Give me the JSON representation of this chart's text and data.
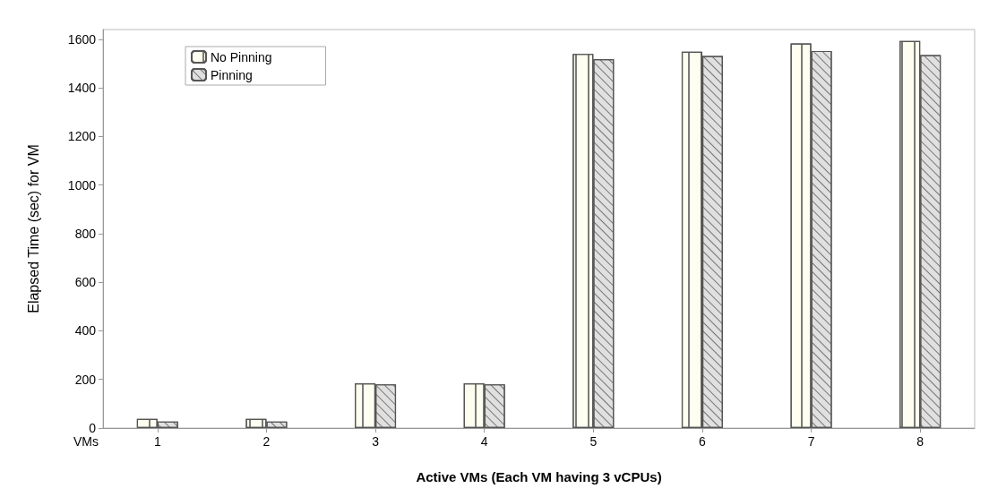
{
  "chart_data": {
    "type": "bar",
    "xlabel": "Active VMs (Each VM having 3 vCPUs)",
    "ylabel": "Elapsed Time (sec) for VM",
    "annotations": [
      "VMs"
    ],
    "categories": [
      "1",
      "2",
      "3",
      "4",
      "5",
      "6",
      "7",
      "8"
    ],
    "series": [
      {
        "name": "No Pinning",
        "color": "#fdfdf0",
        "values": [
          38,
          38,
          184,
          184,
          1540,
          1549,
          1583,
          1593
        ]
      },
      {
        "name": "Pinning",
        "color": "#e0e0e0",
        "values": [
          27,
          27,
          180,
          180,
          1518,
          1531,
          1552,
          1535
        ]
      }
    ],
    "ylim": [
      0,
      1640
    ],
    "yticks": [
      0,
      200,
      400,
      600,
      800,
      1000,
      1200,
      1400,
      1600
    ],
    "grid": false,
    "legend": "top left"
  }
}
